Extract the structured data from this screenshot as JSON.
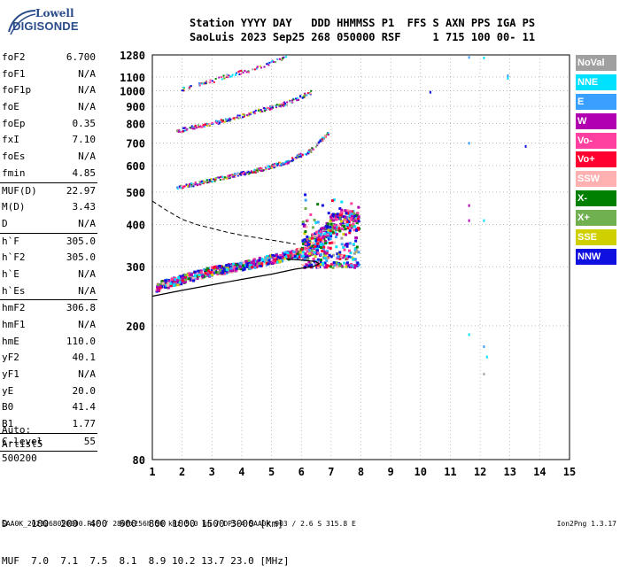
{
  "logo": {
    "top": "Lowell",
    "bottom": "DIGISONDE"
  },
  "header": {
    "line1": "Station YYYY DAY   DDD HHMMSS P1  FFS S AXN PPS IGA PS",
    "line2": "SaoLuis 2023 Sep25 268 050000 RSF     1 715 100 00- 11"
  },
  "params": {
    "group1": [
      {
        "label": "foF2",
        "value": "6.700"
      },
      {
        "label": "foF1",
        "value": "N/A"
      },
      {
        "label": "foF1p",
        "value": "N/A"
      },
      {
        "label": "foE",
        "value": "N/A"
      },
      {
        "label": "foEp",
        "value": "0.35"
      },
      {
        "label": "fxI",
        "value": "7.10"
      },
      {
        "label": "foEs",
        "value": "N/A"
      },
      {
        "label": "fmin",
        "value": "4.85"
      }
    ],
    "group2": [
      {
        "label": "MUF(D)",
        "value": "22.97"
      },
      {
        "label": "M(D)",
        "value": "3.43"
      },
      {
        "label": "D",
        "value": "N/A"
      }
    ],
    "group3": [
      {
        "label": "h`F",
        "value": "305.0"
      },
      {
        "label": "h`F2",
        "value": "305.0"
      },
      {
        "label": "h`E",
        "value": "N/A"
      },
      {
        "label": "h`Es",
        "value": "N/A"
      }
    ],
    "group4": [
      {
        "label": "hmF2",
        "value": "306.8"
      },
      {
        "label": "hmF1",
        "value": "N/A"
      },
      {
        "label": "hmE",
        "value": "110.0"
      },
      {
        "label": "yF2",
        "value": "40.1"
      },
      {
        "label": "yF1",
        "value": "N/A"
      },
      {
        "label": "yE",
        "value": "20.0"
      },
      {
        "label": "B0",
        "value": "41.4"
      },
      {
        "label": "B1",
        "value": "1.77"
      }
    ],
    "group5": [
      {
        "label": "C-level",
        "value": "55"
      }
    ]
  },
  "auto": {
    "line1": "Auto:",
    "line2": "Artist5",
    "line3": "500200"
  },
  "legend": [
    {
      "label": "NoVal",
      "color": "#a0a0a0"
    },
    {
      "label": "NNE",
      "color": "#00e0ff"
    },
    {
      "label": "E",
      "color": "#3aa0ff"
    },
    {
      "label": "W",
      "color": "#b000b0"
    },
    {
      "label": "Vo-",
      "color": "#ff40a0"
    },
    {
      "label": "Vo+",
      "color": "#ff0030"
    },
    {
      "label": "SSW",
      "color": "#ffb0b0"
    },
    {
      "label": "X-",
      "color": "#008000"
    },
    {
      "label": "X+",
      "color": "#70b050"
    },
    {
      "label": "SSE",
      "color": "#d0d000"
    },
    {
      "label": "NNW",
      "color": "#1010e0"
    }
  ],
  "chart_data": {
    "type": "scatter",
    "title": "",
    "xlabel": "",
    "ylabel": "",
    "xlim": [
      1,
      15
    ],
    "ylim": [
      80,
      1280
    ],
    "y_scale": "log",
    "x_ticks": [
      "1",
      "2",
      "3",
      "4",
      "5",
      "6",
      "7",
      "8",
      "9",
      "10",
      "11",
      "12",
      "13",
      "14",
      "15"
    ],
    "y_ticks": [
      {
        "value": 1280,
        "label": "1280"
      },
      {
        "value": 1100,
        "label": "1100"
      },
      {
        "value": 1000,
        "label": "1000"
      },
      {
        "value": 900,
        "label": "900"
      },
      {
        "value": 800,
        "label": "800"
      },
      {
        "value": 700,
        "label": "700"
      },
      {
        "value": 600,
        "label": "600"
      },
      {
        "value": 500,
        "label": "500"
      },
      {
        "value": 400,
        "label": "400"
      },
      {
        "value": 300,
        "label": "300"
      },
      {
        "value": 200,
        "label": "200"
      },
      {
        "value": 80,
        "label": "80"
      }
    ],
    "grid": true,
    "traces": [
      {
        "name": "F trace (1 hop)",
        "x": [
          1.1,
          2,
          3,
          4,
          5,
          6,
          6.5,
          6.8,
          7.0,
          7.5,
          7.9
        ],
        "y": [
          260,
          275,
          290,
          300,
          315,
          330,
          350,
          370,
          395,
          410,
          400
        ]
      },
      {
        "name": "F trace (2 hop)",
        "x": [
          1.8,
          2.5,
          3.5,
          4.5,
          5.5,
          6.3,
          6.9
        ],
        "y": [
          515,
          530,
          555,
          580,
          615,
          665,
          750
        ]
      },
      {
        "name": "F trace (3 hop)",
        "x": [
          1.8,
          2.5,
          3.5,
          4.5,
          5.5,
          6.3
        ],
        "y": [
          760,
          785,
          820,
          870,
          920,
          990
        ]
      },
      {
        "name": "F trace (4 hop)",
        "x": [
          1.9,
          2.5,
          3.0,
          3.5,
          4.5,
          5.5
        ],
        "y": [
          1010,
          1040,
          1070,
          1110,
          1170,
          1270
        ]
      }
    ],
    "profile": {
      "solid": {
        "x": [
          1.0,
          2.0,
          3.0,
          4.0,
          5.0,
          5.8,
          6.4,
          6.6,
          6.5,
          6.3,
          6.0,
          5.5
        ],
        "y": [
          245,
          255,
          265,
          275,
          285,
          295,
          300,
          306,
          310,
          312,
          314,
          316
        ]
      },
      "dashed": {
        "x": [
          1.0,
          1.5,
          2.0,
          2.5,
          3.0,
          3.5,
          4.0,
          4.5,
          5.0,
          5.5,
          5.8
        ],
        "y": [
          470,
          440,
          415,
          400,
          390,
          380,
          372,
          366,
          360,
          354,
          350
        ]
      }
    },
    "scattered_points": [
      {
        "x": 10.3,
        "y": 1000
      },
      {
        "x": 11.6,
        "y": 1270
      },
      {
        "x": 12.1,
        "y": 1265
      },
      {
        "x": 12.9,
        "y": 1120
      },
      {
        "x": 12.9,
        "y": 1100
      },
      {
        "x": 11.6,
        "y": 705
      },
      {
        "x": 13.5,
        "y": 690
      },
      {
        "x": 11.6,
        "y": 460
      },
      {
        "x": 11.6,
        "y": 415
      },
      {
        "x": 12.1,
        "y": 415
      },
      {
        "x": 11.6,
        "y": 190
      },
      {
        "x": 12.1,
        "y": 175
      },
      {
        "x": 12.2,
        "y": 163
      },
      {
        "x": 12.1,
        "y": 145
      }
    ]
  },
  "range_table": {
    "line1": "D    100  200  400  600  800 1000 1500 3000 [km]",
    "line2": "MUF  7.0  7.1  7.5  8.1  8.9 10.2 13.7 23.0 [MHz]"
  },
  "footer": {
    "text": "SAA0K_2023268050000.RSF / 280fx256h 50 kHz 5.0 km / DPS-4 SAA0K 903 / 2.6 S 315.8 E",
    "version": "Ion2Png 1.3.17"
  }
}
